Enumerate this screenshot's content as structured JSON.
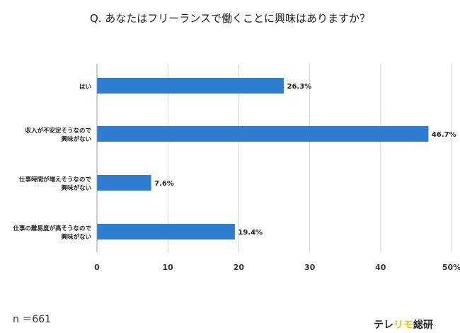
{
  "chart_data": {
    "type": "bar",
    "orientation": "horizontal",
    "title": "Q. あなたはフリーランスで働くことに興味はありますか？",
    "categories": [
      [
        "はい"
      ],
      [
        "収入が不安定そうなので",
        "興味がない"
      ],
      [
        "仕事時間が増えそうなので",
        "興味がない"
      ],
      [
        "仕事の難易度が高そうなので",
        "興味がない"
      ]
    ],
    "values": [
      26.3,
      46.7,
      7.6,
      19.4
    ],
    "value_labels": [
      "26.3%",
      "46.7%",
      "7.6%",
      "19.4%"
    ],
    "xlim": [
      0,
      50
    ],
    "x_ticks": [
      "0",
      "10",
      "20",
      "30",
      "40",
      "50%"
    ],
    "grid": true,
    "colors": {
      "bar": "#2f7dd1",
      "grid": "#d4d4d4",
      "axis": "#9a9a9a"
    }
  },
  "sample_size": "n ＝661",
  "brand": {
    "part1": "テレ",
    "part2": "リモ",
    "part3": "総研",
    "accent": "#f2c200"
  }
}
